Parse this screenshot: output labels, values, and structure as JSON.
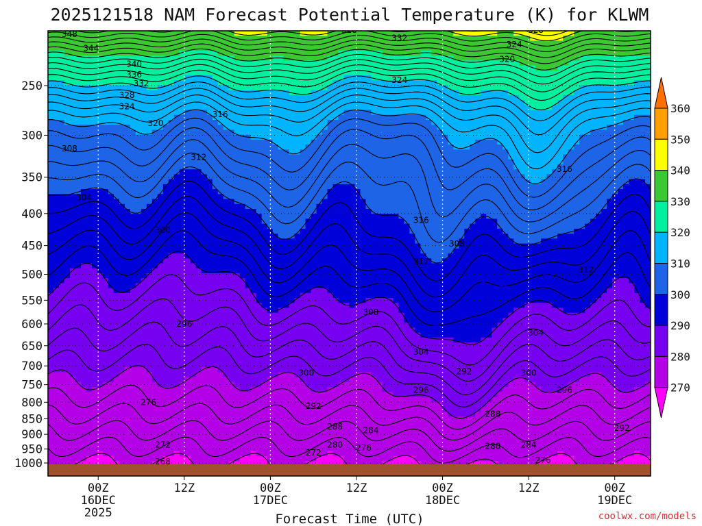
{
  "chart_data": {
    "type": "heatmap",
    "title": "2025121518 NAM Forecast Potential Temperature (K) for KLWM",
    "xlabel": "Forecast Time (UTC)",
    "ylabel": "",
    "credit": "coolwx.com/models",
    "y_ticks": [
      "250",
      "300",
      "350",
      "400",
      "450",
      "500",
      "550",
      "600",
      "650",
      "700",
      "750",
      "800",
      "850",
      "900",
      "950",
      "1000"
    ],
    "x_ticks": [
      {
        "l1": "00Z",
        "l2": "16DEC",
        "l3": "2025"
      },
      {
        "l1": "12Z",
        "l2": "",
        "l3": ""
      },
      {
        "l1": "00Z",
        "l2": "17DEC",
        "l3": ""
      },
      {
        "l1": "12Z",
        "l2": "",
        "l3": ""
      },
      {
        "l1": "00Z",
        "l2": "18DEC",
        "l3": ""
      },
      {
        "l1": "12Z",
        "l2": "",
        "l3": ""
      },
      {
        "l1": "00Z",
        "l2": "19DEC",
        "l3": ""
      }
    ],
    "x_range_hours": [
      -7,
      77
    ],
    "x_tick_hours": [
      0,
      12,
      24,
      36,
      48,
      60,
      72
    ],
    "y_range_hpa": [
      200,
      1025
    ],
    "colorbar": {
      "labels": [
        "360",
        "350",
        "340",
        "330",
        "320",
        "310",
        "300",
        "290",
        "280",
        "270"
      ],
      "boundaries": [
        260,
        270,
        280,
        290,
        300,
        310,
        320,
        330,
        340,
        350,
        360,
        370
      ],
      "colors": [
        "#ff00ff",
        "#b400e6",
        "#7800f0",
        "#0000d8",
        "#1e64e6",
        "#00b4ff",
        "#00f0a0",
        "#3cc832",
        "#ffff00",
        "#ffa000",
        "#ff7000"
      ]
    },
    "contour_labels": [
      {
        "text": "348",
        "t": -4,
        "p": 207
      },
      {
        "text": "344",
        "t": -1,
        "p": 218
      },
      {
        "text": "340",
        "t": 5,
        "p": 231
      },
      {
        "text": "336",
        "t": 5,
        "p": 240
      },
      {
        "text": "332",
        "t": 6,
        "p": 248
      },
      {
        "text": "328",
        "t": 4,
        "p": 259
      },
      {
        "text": "324",
        "t": 4,
        "p": 270
      },
      {
        "text": "320",
        "t": 8,
        "p": 287
      },
      {
        "text": "316",
        "t": 17,
        "p": 278
      },
      {
        "text": "312",
        "t": 14,
        "p": 325
      },
      {
        "text": "308",
        "t": -4,
        "p": 315
      },
      {
        "text": "304",
        "t": -2,
        "p": 377
      },
      {
        "text": "300",
        "t": 9,
        "p": 425
      },
      {
        "text": "296",
        "t": 12,
        "p": 600
      },
      {
        "text": "300",
        "t": 29,
        "p": 718
      },
      {
        "text": "292",
        "t": 30,
        "p": 812
      },
      {
        "text": "288",
        "t": 33,
        "p": 875
      },
      {
        "text": "284",
        "t": 38,
        "p": 887
      },
      {
        "text": "280",
        "t": 33,
        "p": 935
      },
      {
        "text": "276",
        "t": 37,
        "p": 946
      },
      {
        "text": "272",
        "t": 30,
        "p": 963
      },
      {
        "text": "276",
        "t": 7,
        "p": 800
      },
      {
        "text": "272",
        "t": 9,
        "p": 935
      },
      {
        "text": "268",
        "t": 9,
        "p": 995
      },
      {
        "text": "328",
        "t": 35,
        "p": 204
      },
      {
        "text": "332",
        "t": 42,
        "p": 210
      },
      {
        "text": "324",
        "t": 42,
        "p": 245
      },
      {
        "text": "316",
        "t": 45,
        "p": 410
      },
      {
        "text": "312",
        "t": 45,
        "p": 477
      },
      {
        "text": "308",
        "t": 38,
        "p": 575
      },
      {
        "text": "304",
        "t": 45,
        "p": 665
      },
      {
        "text": "296",
        "t": 45,
        "p": 765
      },
      {
        "text": "308",
        "t": 50,
        "p": 447
      },
      {
        "text": "292",
        "t": 51,
        "p": 715
      },
      {
        "text": "300",
        "t": 60,
        "p": 718
      },
      {
        "text": "288",
        "t": 55,
        "p": 835
      },
      {
        "text": "280",
        "t": 55,
        "p": 940
      },
      {
        "text": "284",
        "t": 60,
        "p": 935
      },
      {
        "text": "276",
        "t": 62,
        "p": 990
      },
      {
        "text": "320",
        "t": 57,
        "p": 227
      },
      {
        "text": "324",
        "t": 58,
        "p": 215
      },
      {
        "text": "328",
        "t": 61,
        "p": 204
      },
      {
        "text": "316",
        "t": 65,
        "p": 340
      },
      {
        "text": "312",
        "t": 68,
        "p": 492
      },
      {
        "text": "304",
        "t": 61,
        "p": 620
      },
      {
        "text": "296",
        "t": 65,
        "p": 765
      },
      {
        "text": "292",
        "t": 73,
        "p": 880
      }
    ]
  }
}
